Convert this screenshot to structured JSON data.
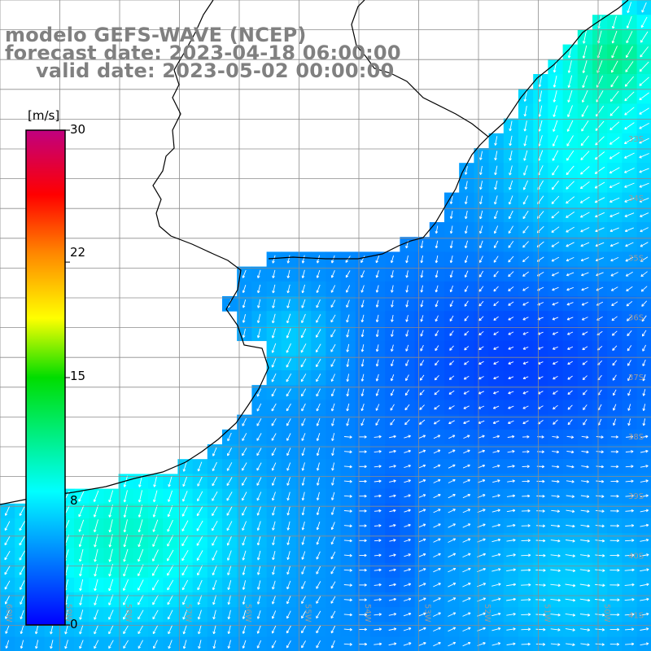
{
  "title": {
    "line1": "modelo GEFS-WAVE (NCEP)",
    "line2": "forecast date: 2023-04-18 06:00:00",
    "line3": "valid date: 2023-05-02 00:00:00"
  },
  "colorbar": {
    "unit": "[m/s]",
    "min": 0,
    "max": 30,
    "ticks": [
      "30",
      "22",
      "15",
      "8",
      "0"
    ],
    "tick_values": [
      30,
      22,
      15,
      8,
      0
    ]
  },
  "lat_labels": [
    "33S",
    "34S",
    "35S",
    "36S",
    "37S",
    "38S",
    "39S",
    "40S",
    "41S"
  ],
  "lon_labels": [
    "60W",
    "59W",
    "58W",
    "57W",
    "56W",
    "55W",
    "54W",
    "53W",
    "52W",
    "51W",
    "50W"
  ],
  "colors": {
    "land": "#ffffff",
    "grid": "#8c8c8c",
    "coast": "#000000",
    "arrow": "#ffffff",
    "title": "#808080"
  }
}
